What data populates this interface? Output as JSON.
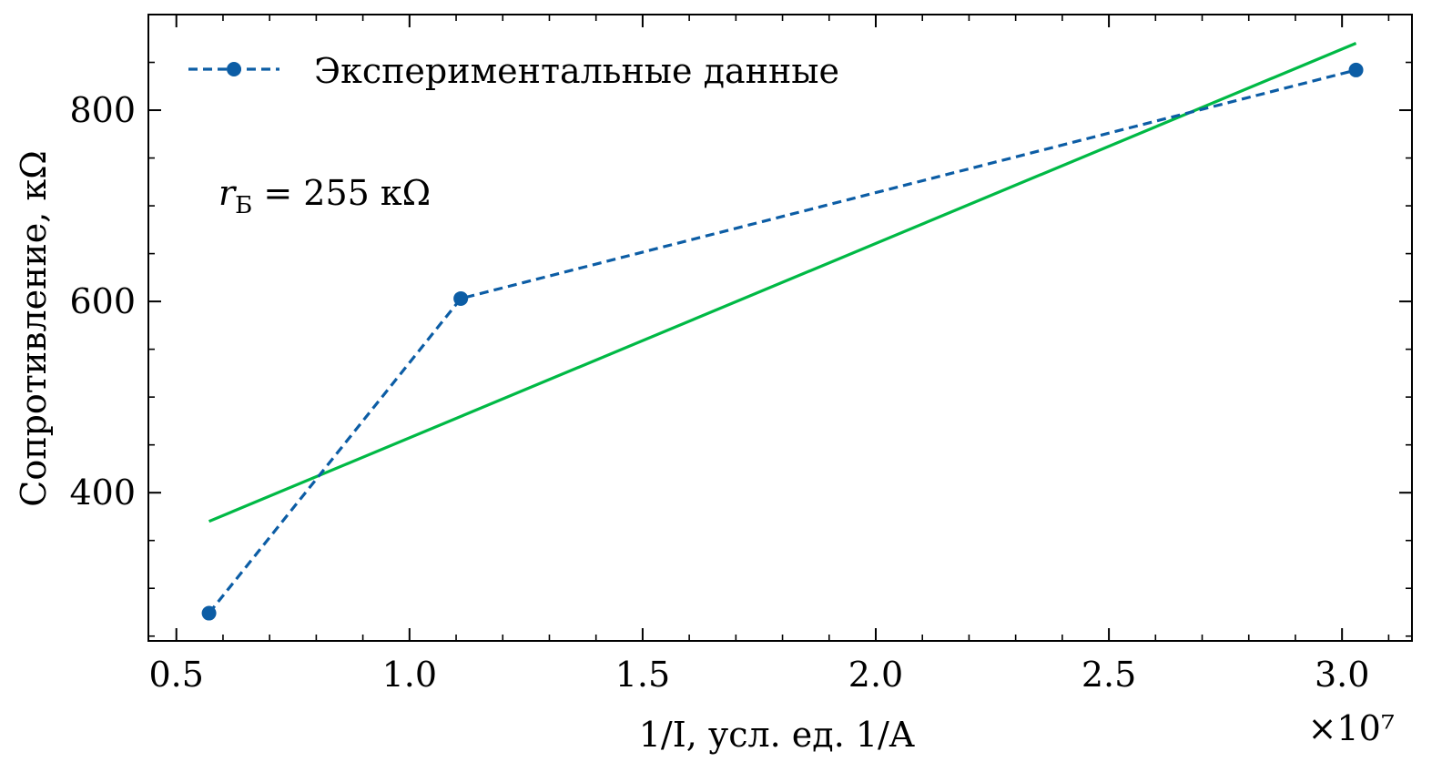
{
  "chart_data": {
    "type": "line",
    "xlabel": "1/I, усл. ед. 1/A",
    "ylabel": "Сопротивление, кΩ",
    "x_offset_label": "×10⁷",
    "xlim": [
      0.44,
      3.15
    ],
    "ylim": [
      245,
      900
    ],
    "x_ticks": [
      0.5,
      1.0,
      1.5,
      2.0,
      2.5,
      3.0
    ],
    "x_tick_labels": [
      "0.5",
      "1.0",
      "1.5",
      "2.0",
      "2.5",
      "3.0"
    ],
    "x_minor_ticks": [
      0.6,
      0.7,
      0.8,
      0.9,
      1.1,
      1.2,
      1.3,
      1.4,
      1.6,
      1.7,
      1.8,
      1.9,
      2.1,
      2.2,
      2.3,
      2.4,
      2.6,
      2.7,
      2.8,
      2.9,
      3.1
    ],
    "y_ticks": [
      400,
      600,
      800
    ],
    "y_tick_labels": [
      "400",
      "600",
      "800"
    ],
    "y_minor_ticks": [
      250,
      300,
      350,
      450,
      500,
      550,
      650,
      700,
      750,
      850
    ],
    "grid": false,
    "legend_position": "top-left",
    "series": [
      {
        "name": "Экспериментальные данные",
        "style": "dashed-markers",
        "color": "#0c5da5",
        "x": [
          0.57,
          1.11,
          3.03
        ],
        "y": [
          274,
          603,
          842
        ]
      },
      {
        "style": "solid",
        "color": "#00b945",
        "x": [
          0.57,
          3.03
        ],
        "y": [
          370,
          870
        ]
      }
    ],
    "annotation": {
      "symbol": "r",
      "subscript": "Б",
      "text": " = 255 кΩ"
    }
  }
}
